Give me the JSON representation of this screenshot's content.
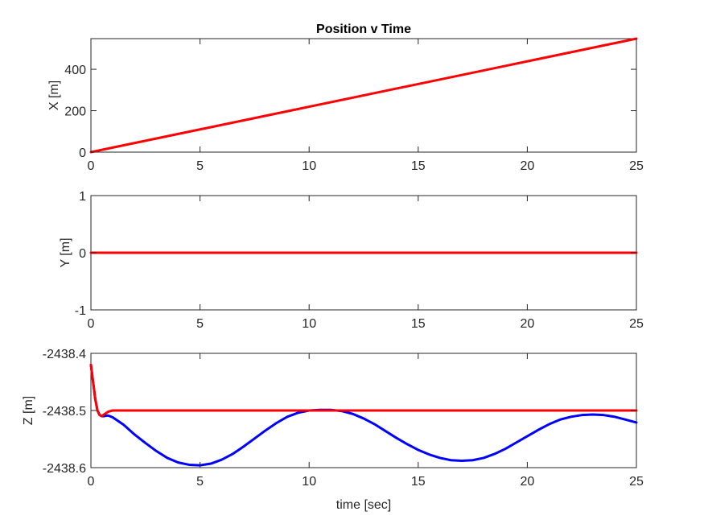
{
  "chart_data": [
    {
      "type": "line",
      "title": "Position v Time",
      "xlabel": "",
      "ylabel": "X [m]",
      "xlim": [
        0,
        25
      ],
      "ylim": [
        0,
        548
      ],
      "xticks": [
        "0",
        "5",
        "10",
        "15",
        "20",
        "25"
      ],
      "yticks": [
        "0",
        "200",
        "400"
      ],
      "grid": false,
      "series": [
        {
          "color": "#ff0000",
          "x": [
            0,
            25
          ],
          "y": [
            0,
            548
          ]
        }
      ]
    },
    {
      "type": "line",
      "title": "",
      "xlabel": "",
      "ylabel": "Y [m]",
      "xlim": [
        0,
        25
      ],
      "ylim": [
        -1,
        1
      ],
      "xticks": [
        "0",
        "5",
        "10",
        "15",
        "20",
        "25"
      ],
      "yticks": [
        "-1",
        "0",
        "1"
      ],
      "grid": false,
      "series": [
        {
          "color": "#ff0000",
          "x": [
            0,
            25
          ],
          "y": [
            0,
            0
          ]
        }
      ]
    },
    {
      "type": "line",
      "title": "",
      "xlabel": "time [sec]",
      "ylabel": "Z [m]",
      "xlim": [
        0,
        25
      ],
      "ylim": [
        -2438.6,
        -2438.4
      ],
      "xticks": [
        "0",
        "5",
        "10",
        "15",
        "20",
        "25"
      ],
      "yticks": [
        "-2438.6",
        "-2438.5",
        "-2438.4"
      ],
      "grid": false,
      "series": [
        {
          "color": "#ff0000",
          "x": [
            0,
            0.1,
            0.2,
            0.3,
            0.4,
            0.5,
            0.6,
            0.8,
            1.0,
            1.2,
            1.5,
            2.0,
            25
          ],
          "y": [
            -2438.42,
            -2438.45,
            -2438.48,
            -2438.5,
            -2438.508,
            -2438.51,
            -2438.507,
            -2438.502,
            -2438.5,
            -2438.5,
            -2438.5,
            -2438.5,
            -2438.5
          ]
        },
        {
          "color": "#0000ff",
          "x": [
            0,
            0.1,
            0.2,
            0.3,
            0.4,
            0.5,
            0.6,
            0.7,
            0.8,
            1.0,
            1.5,
            2.0,
            2.5,
            3.0,
            3.5,
            4.0,
            4.5,
            5.0,
            5.5,
            6.0,
            6.5,
            7.0,
            7.5,
            8.0,
            8.5,
            9.0,
            9.5,
            10.0,
            10.5,
            11.0,
            11.5,
            12.0,
            12.5,
            13.0,
            13.5,
            14.0,
            14.5,
            15.0,
            15.5,
            16.0,
            16.5,
            17.0,
            17.5,
            18.0,
            18.5,
            19.0,
            19.5,
            20.0,
            20.5,
            21.0,
            21.5,
            22.0,
            22.5,
            23.0,
            23.5,
            24.0,
            24.5,
            25.0
          ],
          "y": [
            -2438.42,
            -2438.45,
            -2438.48,
            -2438.5,
            -2438.508,
            -2438.51,
            -2438.51,
            -2438.509,
            -2438.509,
            -2438.512,
            -2438.525,
            -2438.542,
            -2438.557,
            -2438.571,
            -2438.583,
            -2438.591,
            -2438.595,
            -2438.596,
            -2438.593,
            -2438.586,
            -2438.576,
            -2438.563,
            -2438.549,
            -2438.535,
            -2438.522,
            -2438.511,
            -2438.504,
            -2438.5,
            -2438.499,
            -2438.499,
            -2438.501,
            -2438.506,
            -2438.514,
            -2438.524,
            -2438.536,
            -2438.548,
            -2438.559,
            -2438.569,
            -2438.577,
            -2438.583,
            -2438.587,
            -2438.588,
            -2438.587,
            -2438.583,
            -2438.576,
            -2438.567,
            -2438.556,
            -2438.545,
            -2438.534,
            -2438.524,
            -2438.516,
            -2438.511,
            -2438.508,
            -2438.507,
            -2438.508,
            -2438.511,
            -2438.516,
            -2438.521
          ]
        }
      ]
    }
  ]
}
